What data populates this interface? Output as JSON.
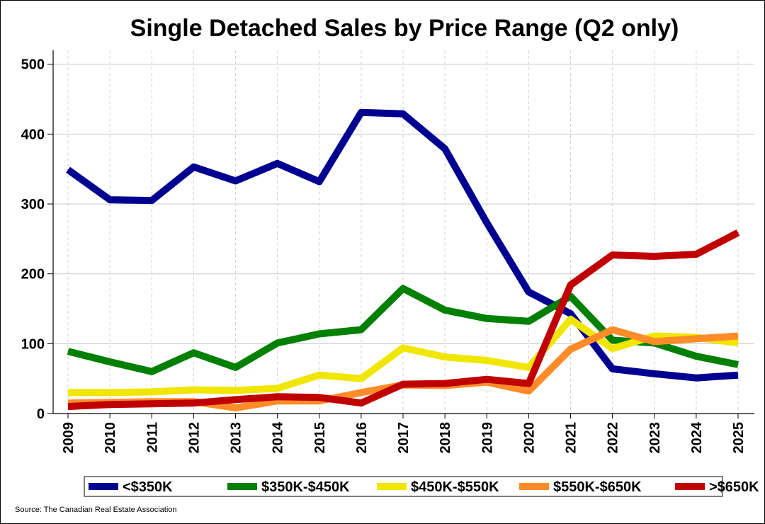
{
  "chart_data": {
    "type": "line",
    "title": "Single Detached Sales by Price Range (Q2 only)",
    "xlabel": "",
    "ylabel": "",
    "categories": [
      "2009",
      "2010",
      "2011",
      "2012",
      "2013",
      "2014",
      "2015",
      "2016",
      "2017",
      "2018",
      "2019",
      "2020",
      "2021",
      "2022",
      "2023",
      "2024",
      "2025"
    ],
    "ylim": [
      0,
      520
    ],
    "yticks": [
      0,
      100,
      200,
      300,
      400,
      500
    ],
    "grid": true,
    "legend_position": "bottom",
    "series": [
      {
        "name": "<$350K",
        "color": "#000090",
        "values": [
          349,
          306,
          305,
          353,
          333,
          358,
          332,
          431,
          429,
          379,
          273,
          174,
          143,
          64,
          57,
          51,
          55
        ]
      },
      {
        "name": "$350K-$450K",
        "color": "#008000",
        "values": [
          89,
          74,
          60,
          87,
          66,
          101,
          114,
          120,
          179,
          148,
          136,
          132,
          168,
          105,
          101,
          82,
          70
        ]
      },
      {
        "name": "$450K-$550K",
        "color": "#f0e600",
        "values": [
          30,
          30,
          31,
          34,
          33,
          36,
          55,
          50,
          94,
          81,
          76,
          66,
          135,
          93,
          111,
          109,
          101
        ]
      },
      {
        "name": "$550K-$650K",
        "color": "#ff8c28",
        "values": [
          15,
          16,
          17,
          17,
          8,
          18,
          18,
          30,
          41,
          40,
          45,
          32,
          92,
          120,
          103,
          107,
          111
        ]
      },
      {
        "name": ">$650K",
        "color": "#c00000",
        "values": [
          10,
          13,
          14,
          15,
          20,
          24,
          23,
          15,
          42,
          43,
          49,
          43,
          184,
          227,
          225,
          228,
          259
        ]
      }
    ],
    "source": "Source: The Canadian Real Estate Association"
  }
}
